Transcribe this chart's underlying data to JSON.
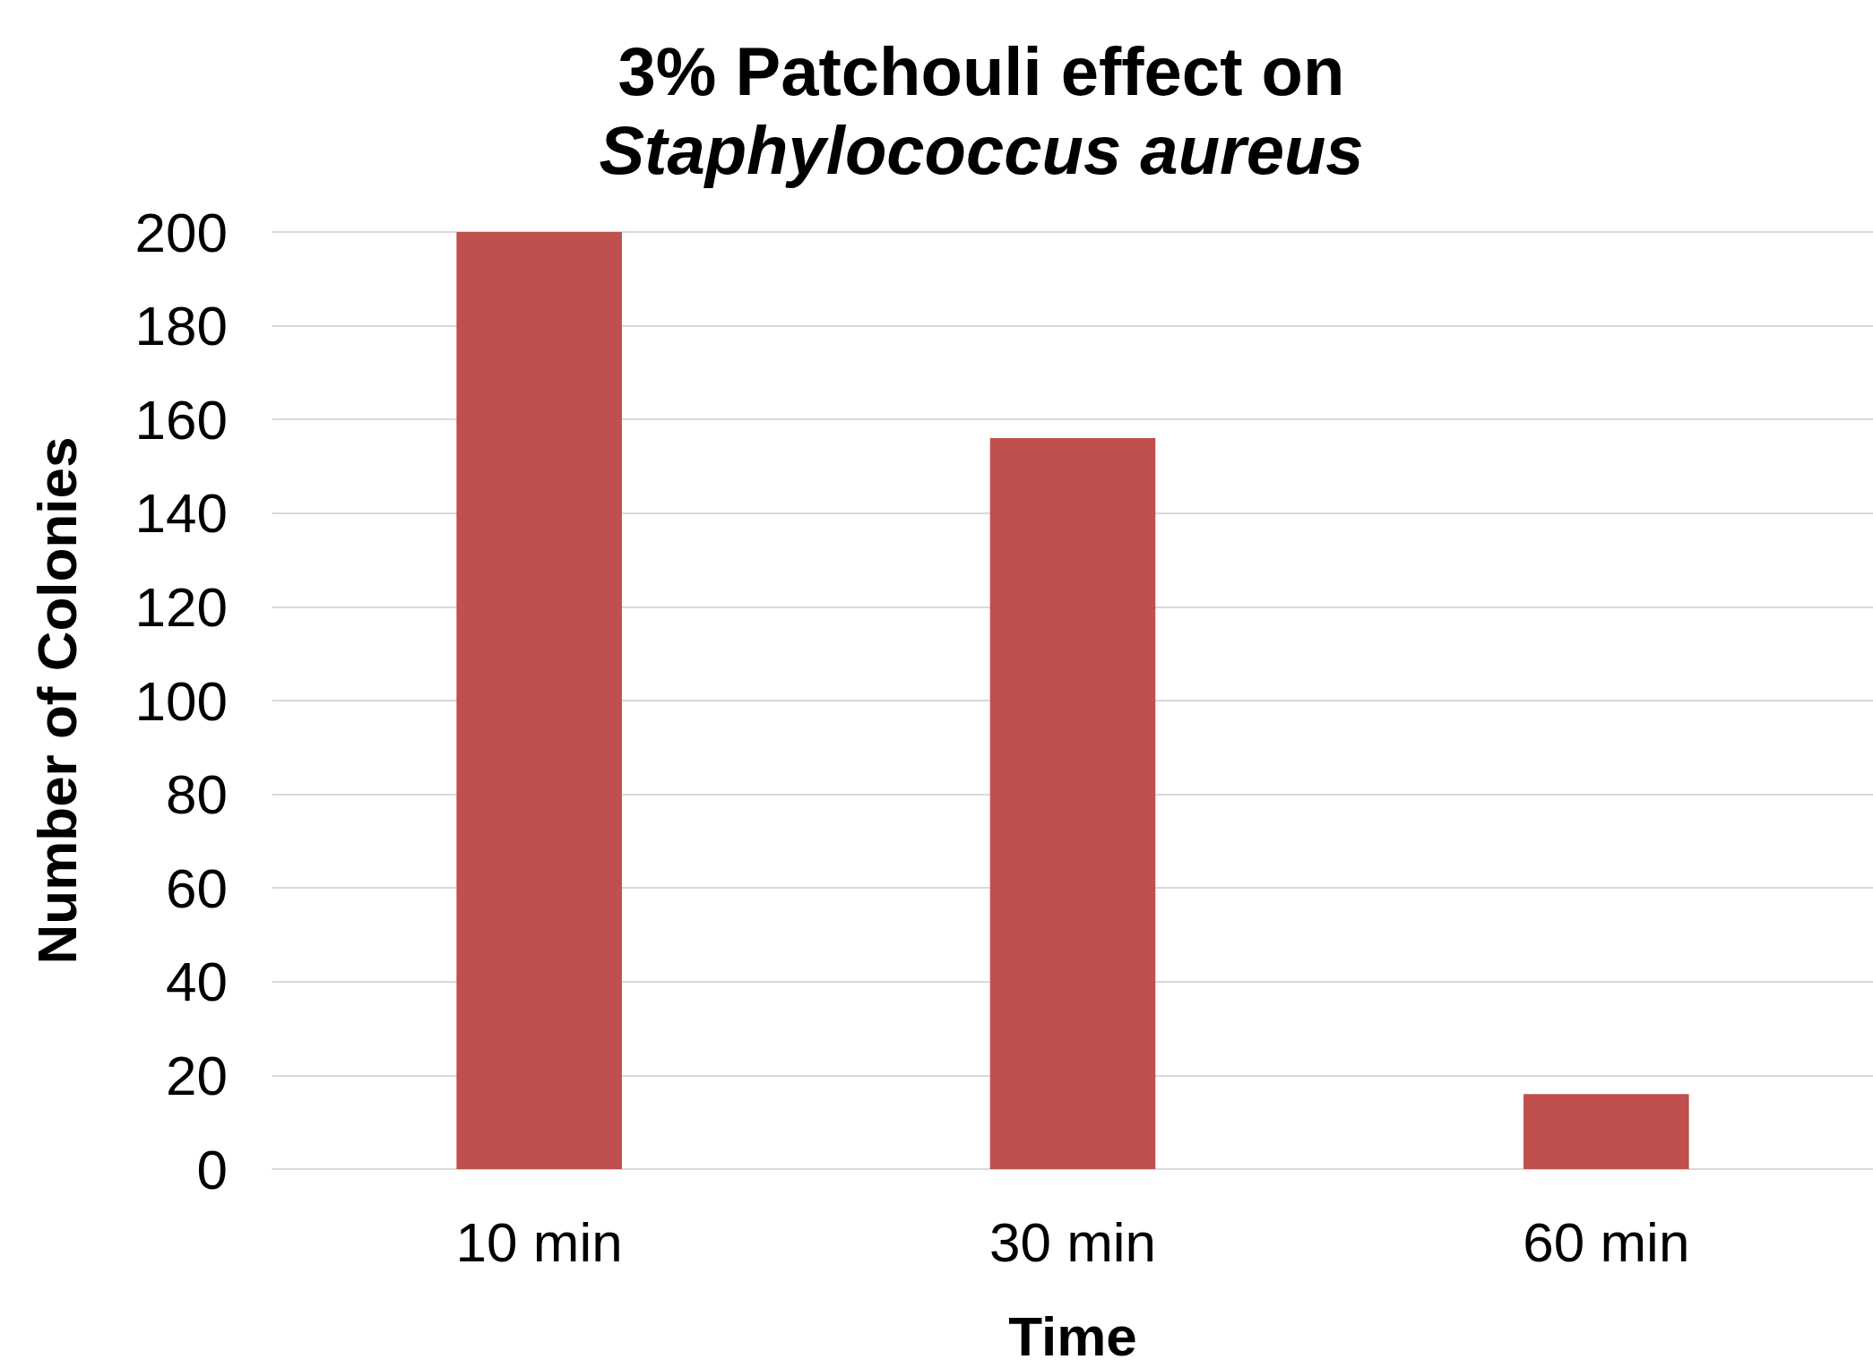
{
  "chart_data": {
    "type": "bar",
    "title": "3% Patchouli effect on\nStaphylococcus aureus",
    "xlabel": "Time",
    "ylabel": "Number of Colonies",
    "categories": [
      "10 min",
      "30 min",
      "60 min"
    ],
    "values": [
      200,
      156,
      16
    ],
    "color": "#c0504d",
    "ylim": [
      0,
      200
    ],
    "yticks": [
      0,
      20,
      40,
      60,
      80,
      100,
      120,
      140,
      160,
      180,
      200
    ],
    "grid": "y"
  }
}
